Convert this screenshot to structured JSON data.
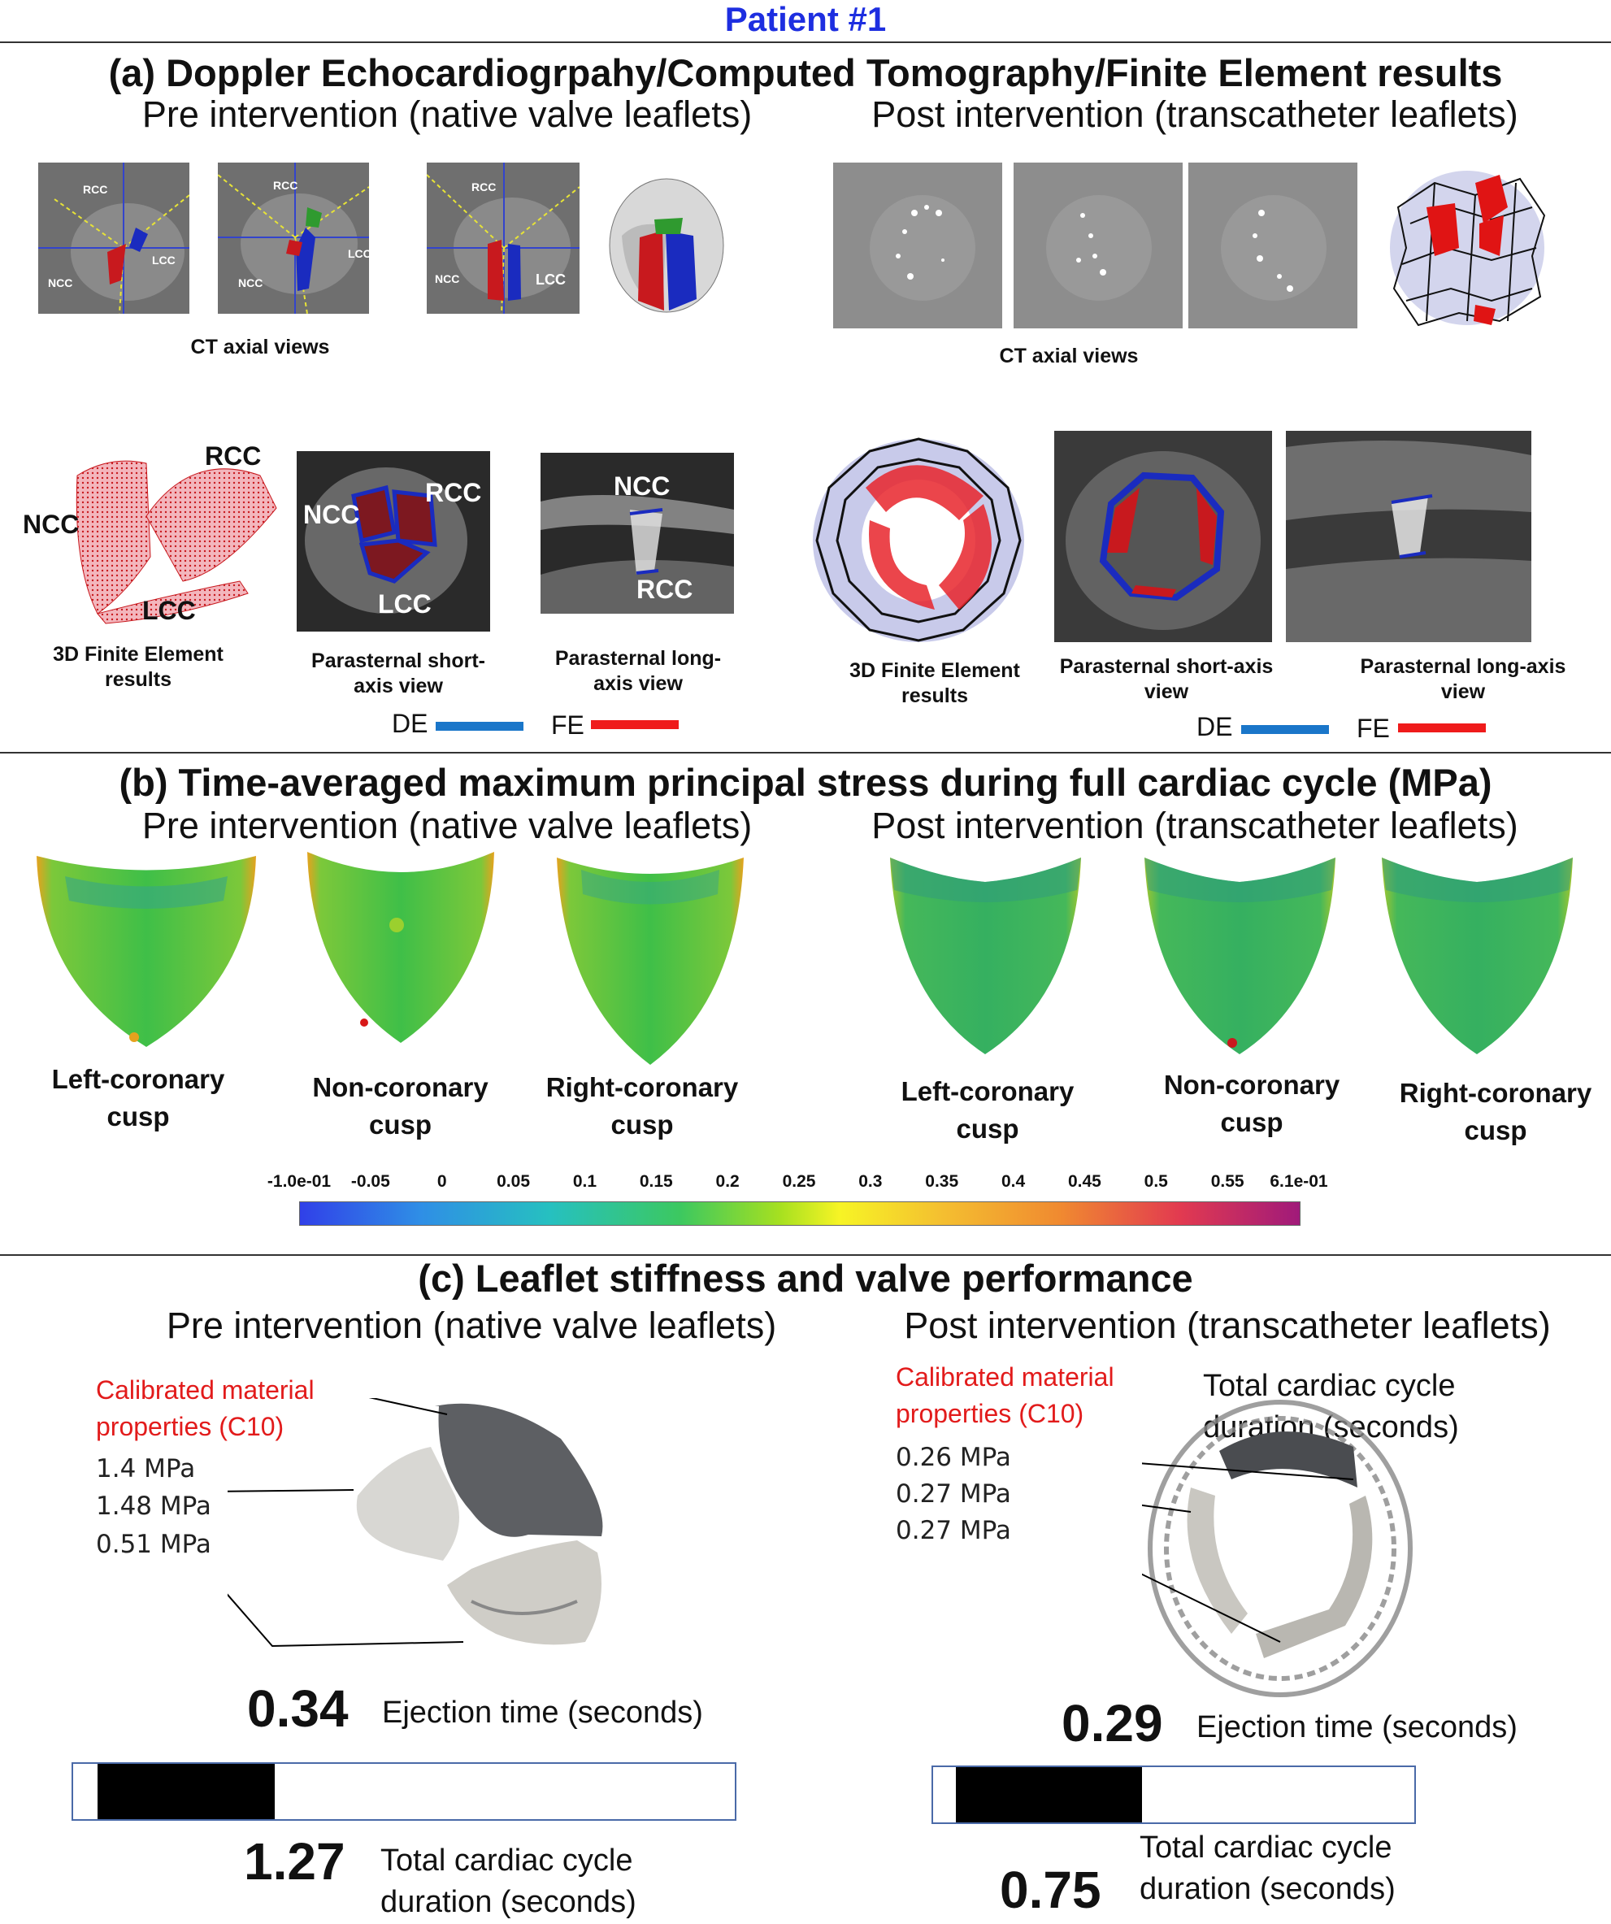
{
  "patient_title": "Patient #1",
  "section_a": {
    "title": "(a) Doppler Echocardiogrpahy/Computed Tomography/Finite Element results",
    "pre_heading": "Pre intervention (native valve leaflets)",
    "post_heading": "Post intervention (transcatheter leaflets)",
    "ct_caption_pre": "CT axial views",
    "ct_caption_post": "CT axial views",
    "ct_labels": {
      "rcc": "RCC",
      "ncc": "NCC",
      "lcc": "LCC"
    },
    "fe_labels": {
      "ncc": "NCC",
      "rcc": "RCC",
      "lcc": "LCC"
    },
    "fe_caption_pre": "3D Finite Element results",
    "fe_caption_post": "3D Finite Element results",
    "short_axis_caption": "Parasternal short-axis view",
    "long_axis_caption": "Parasternal long-axis view",
    "legend_de": "DE",
    "legend_fe": "FE",
    "colors": {
      "de": "#1a76c9",
      "fe": "#ef1b1b",
      "leaflet_red": "#c8191e",
      "leaflet_blue": "#1a2bbf",
      "leaflet_green": "#2f9a2f"
    }
  },
  "section_b": {
    "title": "(b) Time-averaged maximum principal stress during full cardiac cycle (MPa)",
    "pre_heading": "Pre intervention (native valve leaflets)",
    "post_heading": "Post intervention (transcatheter leaflets)",
    "pre_cusps": [
      "Left-coronary cusp",
      "Non-coronary cusp",
      "Right-coronary cusp"
    ],
    "post_cusps": [
      "Left-coronary cusp",
      "Non-coronary cusp",
      "Right-coronary cusp"
    ],
    "colorbar_ticks": [
      "-1.0e-01",
      "-0.05",
      "0",
      "0.05",
      "0.1",
      "0.15",
      "0.2",
      "0.25",
      "0.3",
      "0.35",
      "0.4",
      "0.45",
      "0.5",
      "0.55",
      "6.1e-01"
    ]
  },
  "section_c": {
    "title": "(c) Leaflet stiffness and valve performance",
    "pre_heading": "Pre intervention (native valve leaflets)",
    "post_heading": "Post intervention (transcatheter leaflets)",
    "calibrated_label": "Calibrated material properties (C10)",
    "pre_values": [
      "1.4 MPa",
      "1.48 MPa",
      "0.51 MPa"
    ],
    "post_values": [
      "0.26 MPa",
      "0.27 MPa",
      "0.27 MPa"
    ],
    "post_overlap_text": "Total cardiac cycle duration (seconds)",
    "pre_ejection": "0.34",
    "post_ejection": "0.29",
    "ejection_label": "Ejection time (seconds)",
    "pre_cycle": "1.27",
    "post_cycle": "0.75",
    "cycle_label": "Total cardiac cycle duration (seconds)",
    "pre_bar_fraction": 0.268,
    "post_bar_fraction": 0.387
  }
}
